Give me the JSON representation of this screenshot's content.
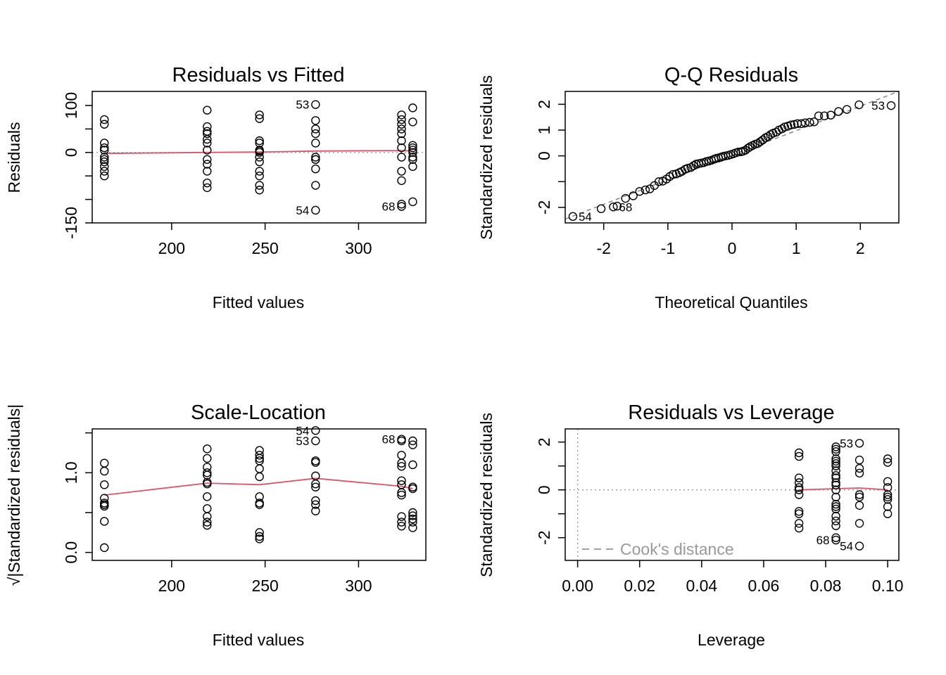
{
  "chart_data": [
    {
      "id": "rvf",
      "type": "scatter",
      "title": "Residuals vs Fitted",
      "xlabel": "Fitted values",
      "ylabel": "Residuals",
      "xlim": [
        157.5,
        336.0
      ],
      "ylim": [
        -150,
        130
      ],
      "xticks": [
        200,
        250,
        300
      ],
      "yticks": [
        100,
        0,
        -150
      ],
      "ytick_minor": [
        50,
        -50,
        -100
      ],
      "x": [
        164,
        164,
        164,
        164,
        164,
        164,
        164,
        164,
        164,
        164,
        164,
        219,
        219,
        219,
        219,
        219,
        219,
        219,
        219,
        219,
        219,
        219,
        219,
        247,
        247,
        247,
        247,
        247,
        247,
        247,
        247,
        247,
        247,
        247,
        247,
        247,
        277,
        277,
        277,
        277,
        277,
        277,
        277,
        277,
        277,
        277,
        277,
        323,
        323,
        323,
        323,
        323,
        323,
        323,
        323,
        323,
        323,
        323,
        323,
        329,
        329,
        329,
        329,
        329,
        329,
        329,
        329,
        329,
        329
      ],
      "y": [
        70,
        60,
        20,
        10,
        -10,
        -15,
        -20,
        -30,
        -40,
        -50,
        5,
        90,
        55,
        45,
        40,
        28,
        20,
        5,
        -15,
        -25,
        -40,
        -65,
        -75,
        80,
        72,
        25,
        20,
        5,
        0,
        -10,
        -20,
        -40,
        -50,
        -70,
        -80,
        3,
        102,
        68,
        50,
        40,
        20,
        -10,
        -15,
        -35,
        -70,
        -123,
        -15,
        80,
        70,
        60,
        50,
        40,
        25,
        10,
        -10,
        -40,
        -60,
        -110,
        -115,
        95,
        65,
        15,
        10,
        5,
        0,
        -10,
        -15,
        -30,
        -105
      ],
      "point_labels": [
        {
          "text": "53",
          "x": 277,
          "y": 102,
          "side": "left"
        },
        {
          "text": "54",
          "x": 277,
          "y": -123,
          "side": "left"
        },
        {
          "text": "68",
          "x": 323,
          "y": -115,
          "side": "left"
        }
      ],
      "smooth": {
        "x": [
          164,
          219,
          247,
          277,
          323,
          329
        ],
        "y": [
          -2,
          0,
          1,
          3,
          4,
          3
        ]
      },
      "ref_line": {
        "type": "horizontal",
        "y": 0,
        "style": "dotted"
      }
    },
    {
      "id": "qq",
      "type": "scatter",
      "title": "Q-Q Residuals",
      "xlabel": "Theoretical Quantiles",
      "ylabel": "Standardized residuals",
      "xlim": [
        -2.6,
        2.6
      ],
      "ylim": [
        -2.6,
        2.5
      ],
      "xticks": [
        -2,
        -1,
        0,
        1,
        2
      ],
      "yticks": [
        2,
        1,
        0,
        -2
      ],
      "ytick_minor": [
        -1
      ],
      "x": [
        -2.48,
        -2.04,
        -1.85,
        -1.79,
        -1.66,
        -1.54,
        -1.44,
        -1.35,
        -1.28,
        -1.21,
        -1.14,
        -1.08,
        -1.02,
        -0.97,
        -0.92,
        -0.87,
        -0.82,
        -0.78,
        -0.73,
        -0.69,
        -0.64,
        -0.6,
        -0.56,
        -0.52,
        -0.48,
        -0.44,
        -0.4,
        -0.36,
        -0.32,
        -0.28,
        -0.25,
        -0.21,
        -0.17,
        -0.14,
        -0.1,
        -0.06,
        -0.02,
        0.02,
        0.06,
        0.1,
        0.14,
        0.17,
        0.21,
        0.25,
        0.28,
        0.32,
        0.36,
        0.4,
        0.44,
        0.48,
        0.52,
        0.56,
        0.6,
        0.64,
        0.69,
        0.73,
        0.78,
        0.82,
        0.87,
        0.92,
        0.97,
        1.02,
        1.08,
        1.14,
        1.21,
        1.28,
        1.35,
        1.44,
        1.54,
        1.66,
        1.79,
        1.98,
        2.48
      ],
      "y": [
        -2.35,
        -2.05,
        -1.98,
        -1.95,
        -1.65,
        -1.55,
        -1.38,
        -1.32,
        -1.28,
        -1.15,
        -1.0,
        -0.98,
        -0.9,
        -0.8,
        -0.72,
        -0.7,
        -0.65,
        -0.6,
        -0.52,
        -0.48,
        -0.45,
        -0.38,
        -0.32,
        -0.3,
        -0.28,
        -0.26,
        -0.22,
        -0.2,
        -0.17,
        -0.13,
        -0.1,
        -0.08,
        -0.05,
        -0.02,
        0.0,
        0.02,
        0.05,
        0.08,
        0.12,
        0.15,
        0.16,
        0.18,
        0.22,
        0.3,
        0.35,
        0.4,
        0.45,
        0.48,
        0.55,
        0.62,
        0.7,
        0.75,
        0.82,
        0.88,
        0.92,
        1.0,
        1.05,
        1.12,
        1.15,
        1.2,
        1.22,
        1.25,
        1.25,
        1.28,
        1.3,
        1.32,
        1.55,
        1.55,
        1.58,
        1.72,
        1.8,
        1.98,
        1.95
      ],
      "point_labels": [
        {
          "text": "53",
          "x": 2.48,
          "y": 1.95,
          "side": "left"
        },
        {
          "text": "54",
          "x": -2.48,
          "y": -2.35,
          "side": "right"
        },
        {
          "text": "68",
          "x": -1.85,
          "y": -1.98,
          "side": "right"
        }
      ],
      "ref_line": {
        "type": "diagonal",
        "from": [
          -2.6,
          -2.45
        ],
        "to": [
          2.6,
          2.5
        ],
        "style": "dashed"
      }
    },
    {
      "id": "sl",
      "type": "scatter",
      "title": "Scale-Location",
      "xlabel": "Fitted values",
      "ylabel": "√|Standardized residuals|",
      "xlim": [
        157.5,
        336.0
      ],
      "ylim": [
        -0.1,
        1.55
      ],
      "xticks": [
        200,
        250,
        300
      ],
      "yticks": [
        0.0,
        1.0
      ],
      "ytick_minor": [
        0.5,
        1.5
      ],
      "x": [
        164,
        164,
        164,
        164,
        164,
        164,
        164,
        164,
        164,
        219,
        219,
        219,
        219,
        219,
        219,
        219,
        219,
        219,
        219,
        219,
        219,
        247,
        247,
        247,
        247,
        247,
        247,
        247,
        247,
        247,
        247,
        247,
        247,
        277,
        277,
        277,
        277,
        277,
        277,
        277,
        277,
        277,
        277,
        323,
        323,
        323,
        323,
        323,
        323,
        323,
        323,
        323,
        323,
        323,
        323,
        329,
        329,
        329,
        329,
        329,
        329,
        329,
        329,
        329,
        329
      ],
      "y": [
        1.12,
        1.02,
        0.85,
        0.68,
        0.62,
        0.6,
        0.58,
        0.39,
        0.06,
        1.3,
        1.18,
        1.07,
        1.0,
        0.97,
        0.88,
        0.86,
        0.7,
        0.55,
        0.45,
        0.38,
        0.34,
        1.28,
        1.22,
        1.18,
        1.15,
        1.05,
        0.95,
        0.7,
        0.62,
        0.6,
        0.25,
        0.2,
        0.17,
        1.53,
        1.4,
        1.15,
        1.13,
        0.96,
        0.86,
        0.82,
        0.65,
        0.6,
        0.52,
        1.42,
        1.4,
        1.22,
        1.12,
        1.08,
        0.9,
        0.85,
        0.75,
        0.72,
        0.45,
        0.38,
        0.33,
        1.4,
        1.35,
        1.1,
        0.82,
        0.8,
        0.5,
        0.46,
        0.42,
        0.38,
        0.31
      ],
      "point_labels": [
        {
          "text": "54",
          "x": 277,
          "y": 1.53,
          "side": "left"
        },
        {
          "text": "53",
          "x": 277,
          "y": 1.4,
          "side": "left"
        },
        {
          "text": "68",
          "x": 323,
          "y": 1.42,
          "side": "left"
        }
      ],
      "smooth": {
        "x": [
          164,
          219,
          247,
          277,
          323,
          329
        ],
        "y": [
          0.72,
          0.87,
          0.85,
          0.93,
          0.83,
          0.8
        ]
      }
    },
    {
      "id": "rvl",
      "type": "scatter",
      "title": "Residuals vs Leverage",
      "xlabel": "Leverage",
      "ylabel": "Standardized residuals",
      "xlim": [
        -0.004,
        0.1036
      ],
      "ylim": [
        -2.95,
        2.55
      ],
      "xticks_text": [
        "0.00",
        "0.02",
        "0.04",
        "0.06",
        "0.08",
        "0.10"
      ],
      "xticks": [
        0.0,
        0.02,
        0.04,
        0.06,
        0.08,
        0.1
      ],
      "yticks": [
        2,
        0,
        -2
      ],
      "ytick_minor": [
        1,
        -1
      ],
      "x": [
        0.0714,
        0.0714,
        0.0714,
        0.0714,
        0.0714,
        0.0714,
        0.0714,
        0.0714,
        0.0714,
        0.0714,
        0.0714,
        0.0833,
        0.0833,
        0.0833,
        0.0833,
        0.0833,
        0.0833,
        0.0833,
        0.0833,
        0.0833,
        0.0833,
        0.0833,
        0.0833,
        0.0833,
        0.0833,
        0.0833,
        0.0833,
        0.0833,
        0.0833,
        0.0833,
        0.0833,
        0.0833,
        0.0833,
        0.0909,
        0.0909,
        0.0909,
        0.0909,
        0.0909,
        0.0909,
        0.0909,
        0.0909,
        0.0909,
        0.1,
        0.1,
        0.1,
        0.1,
        0.1,
        0.1,
        0.1,
        0.1,
        0.1
      ],
      "y": [
        1.55,
        1.4,
        0.5,
        0.3,
        0.1,
        -0.2,
        -0.9,
        -1.0,
        -1.4,
        -1.6,
        0.0,
        1.8,
        1.7,
        1.6,
        1.3,
        1.2,
        1.1,
        1.0,
        0.8,
        0.6,
        0.5,
        0.3,
        0.2,
        0.0,
        -0.3,
        -0.6,
        -0.7,
        -0.8,
        -1.1,
        -1.3,
        -1.5,
        -2.0,
        -2.1,
        1.95,
        1.25,
        0.9,
        0.7,
        -0.2,
        -0.3,
        -0.65,
        -1.4,
        -2.35,
        1.3,
        1.15,
        0.35,
        0.1,
        -0.2,
        -0.3,
        -0.4,
        -0.7,
        -1.0
      ],
      "point_labels": [
        {
          "text": "53",
          "x": 0.0909,
          "y": 1.95,
          "side": "left"
        },
        {
          "text": "68",
          "x": 0.0833,
          "y": -2.1,
          "side": "left"
        },
        {
          "text": "54",
          "x": 0.0909,
          "y": -2.35,
          "side": "left"
        }
      ],
      "smooth": {
        "x": [
          0.0714,
          0.0833,
          0.0909,
          0.1
        ],
        "y": [
          0.0,
          0.05,
          0.08,
          0.0
        ]
      },
      "ref_line": {
        "type": "horizontal",
        "y": 0,
        "style": "dotted"
      },
      "vref_line": {
        "type": "vertical",
        "x": 0,
        "style": "dotted"
      },
      "legend": {
        "text": "Cook's distance",
        "style": "dashed",
        "position": "bottom-left"
      }
    }
  ]
}
